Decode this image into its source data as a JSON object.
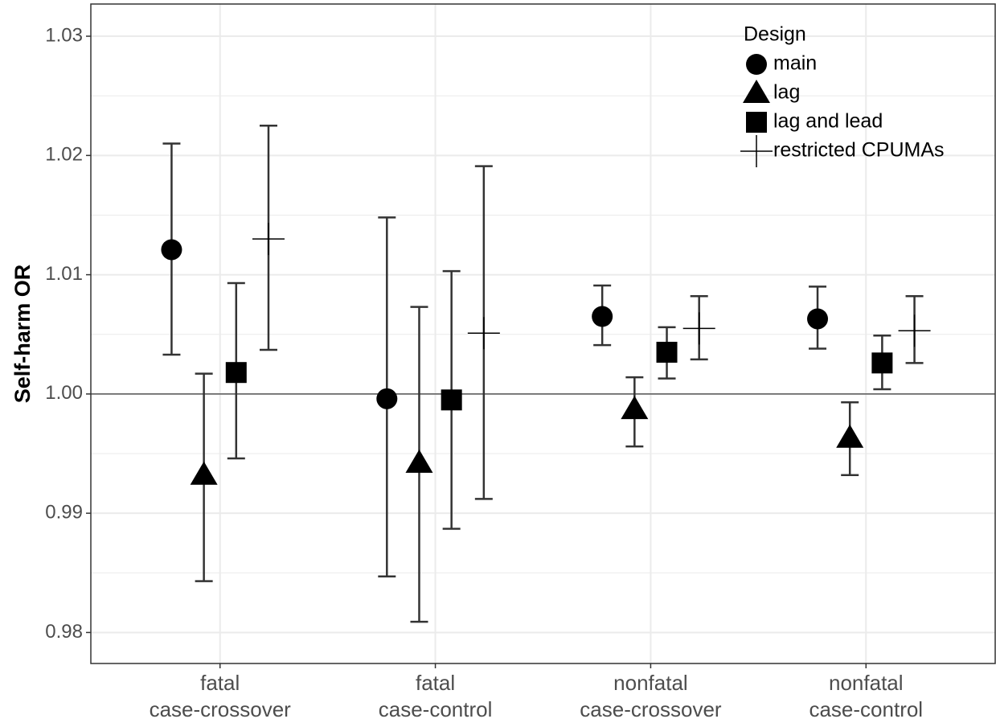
{
  "chart_data": {
    "type": "errorbar",
    "y_label": "Self-harm OR",
    "legend_title": "Design",
    "legend_position": "top-right",
    "categories": [
      [
        "fatal",
        "case-crossover"
      ],
      [
        "fatal",
        "case-control"
      ],
      [
        "nonfatal",
        "case-crossover"
      ],
      [
        "nonfatal",
        "case-control"
      ]
    ],
    "ylim": [
      0.9774,
      1.0327
    ],
    "yticks": [
      0.98,
      0.99,
      {
        "value": 1,
        "label": "1.00"
      },
      1.01,
      1.02,
      1.03
    ],
    "reference_line": 1,
    "grid": true,
    "color": "#000000",
    "series": [
      {
        "name": "main",
        "shape": "circle",
        "values": [
          1.0121,
          0.9996,
          1.0065,
          1.0063
        ],
        "lower": [
          1.0033,
          0.9847,
          1.0041,
          1.0038
        ],
        "upper": [
          1.021,
          1.0148,
          1.0091,
          1.009
        ]
      },
      {
        "name": "lag",
        "shape": "triangle",
        "values": [
          0.9932,
          0.9942,
          0.9987,
          0.9963
        ],
        "lower": [
          0.9843,
          0.9809,
          0.9956,
          0.9932
        ],
        "upper": [
          1.0017,
          1.0073,
          1.0014,
          0.9993
        ]
      },
      {
        "name": "lag and lead",
        "shape": "square",
        "values": [
          1.0018,
          0.9995,
          1.0035,
          1.0026
        ],
        "lower": [
          0.9946,
          0.9887,
          1.0013,
          1.0004
        ],
        "upper": [
          1.0093,
          1.0103,
          1.0056,
          1.0049
        ]
      },
      {
        "name": "restricted CPUMAs",
        "shape": "plus",
        "values": [
          1.013,
          1.0051,
          1.0055,
          1.0053
        ],
        "lower": [
          1.0037,
          0.9912,
          1.0029,
          1.0026
        ],
        "upper": [
          1.0225,
          1.0191,
          1.0082,
          1.0082
        ]
      }
    ]
  }
}
